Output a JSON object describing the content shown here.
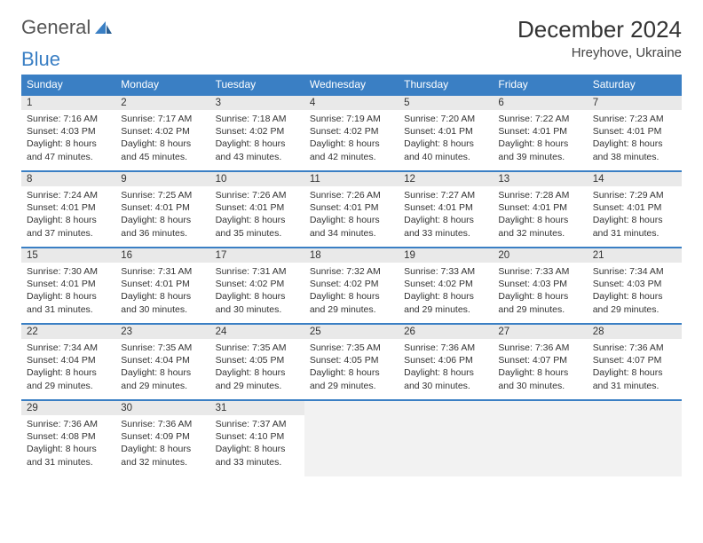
{
  "brand": {
    "part1": "General",
    "part2": "Blue"
  },
  "title": {
    "month": "December 2024",
    "location": "Hreyhove, Ukraine"
  },
  "dayNames": [
    "Sunday",
    "Monday",
    "Tuesday",
    "Wednesday",
    "Thursday",
    "Friday",
    "Saturday"
  ],
  "colors": {
    "header_bg": "#3a7fc4",
    "header_text": "#ffffff",
    "daynum_bg": "#e9e9e9",
    "border": "#3a7fc4",
    "empty_bg": "#f2f2f2"
  },
  "days": [
    {
      "n": "1",
      "sr": "7:16 AM",
      "ss": "4:03 PM",
      "dl": "8 hours and 47 minutes."
    },
    {
      "n": "2",
      "sr": "7:17 AM",
      "ss": "4:02 PM",
      "dl": "8 hours and 45 minutes."
    },
    {
      "n": "3",
      "sr": "7:18 AM",
      "ss": "4:02 PM",
      "dl": "8 hours and 43 minutes."
    },
    {
      "n": "4",
      "sr": "7:19 AM",
      "ss": "4:02 PM",
      "dl": "8 hours and 42 minutes."
    },
    {
      "n": "5",
      "sr": "7:20 AM",
      "ss": "4:01 PM",
      "dl": "8 hours and 40 minutes."
    },
    {
      "n": "6",
      "sr": "7:22 AM",
      "ss": "4:01 PM",
      "dl": "8 hours and 39 minutes."
    },
    {
      "n": "7",
      "sr": "7:23 AM",
      "ss": "4:01 PM",
      "dl": "8 hours and 38 minutes."
    },
    {
      "n": "8",
      "sr": "7:24 AM",
      "ss": "4:01 PM",
      "dl": "8 hours and 37 minutes."
    },
    {
      "n": "9",
      "sr": "7:25 AM",
      "ss": "4:01 PM",
      "dl": "8 hours and 36 minutes."
    },
    {
      "n": "10",
      "sr": "7:26 AM",
      "ss": "4:01 PM",
      "dl": "8 hours and 35 minutes."
    },
    {
      "n": "11",
      "sr": "7:26 AM",
      "ss": "4:01 PM",
      "dl": "8 hours and 34 minutes."
    },
    {
      "n": "12",
      "sr": "7:27 AM",
      "ss": "4:01 PM",
      "dl": "8 hours and 33 minutes."
    },
    {
      "n": "13",
      "sr": "7:28 AM",
      "ss": "4:01 PM",
      "dl": "8 hours and 32 minutes."
    },
    {
      "n": "14",
      "sr": "7:29 AM",
      "ss": "4:01 PM",
      "dl": "8 hours and 31 minutes."
    },
    {
      "n": "15",
      "sr": "7:30 AM",
      "ss": "4:01 PM",
      "dl": "8 hours and 31 minutes."
    },
    {
      "n": "16",
      "sr": "7:31 AM",
      "ss": "4:01 PM",
      "dl": "8 hours and 30 minutes."
    },
    {
      "n": "17",
      "sr": "7:31 AM",
      "ss": "4:02 PM",
      "dl": "8 hours and 30 minutes."
    },
    {
      "n": "18",
      "sr": "7:32 AM",
      "ss": "4:02 PM",
      "dl": "8 hours and 29 minutes."
    },
    {
      "n": "19",
      "sr": "7:33 AM",
      "ss": "4:02 PM",
      "dl": "8 hours and 29 minutes."
    },
    {
      "n": "20",
      "sr": "7:33 AM",
      "ss": "4:03 PM",
      "dl": "8 hours and 29 minutes."
    },
    {
      "n": "21",
      "sr": "7:34 AM",
      "ss": "4:03 PM",
      "dl": "8 hours and 29 minutes."
    },
    {
      "n": "22",
      "sr": "7:34 AM",
      "ss": "4:04 PM",
      "dl": "8 hours and 29 minutes."
    },
    {
      "n": "23",
      "sr": "7:35 AM",
      "ss": "4:04 PM",
      "dl": "8 hours and 29 minutes."
    },
    {
      "n": "24",
      "sr": "7:35 AM",
      "ss": "4:05 PM",
      "dl": "8 hours and 29 minutes."
    },
    {
      "n": "25",
      "sr": "7:35 AM",
      "ss": "4:05 PM",
      "dl": "8 hours and 29 minutes."
    },
    {
      "n": "26",
      "sr": "7:36 AM",
      "ss": "4:06 PM",
      "dl": "8 hours and 30 minutes."
    },
    {
      "n": "27",
      "sr": "7:36 AM",
      "ss": "4:07 PM",
      "dl": "8 hours and 30 minutes."
    },
    {
      "n": "28",
      "sr": "7:36 AM",
      "ss": "4:07 PM",
      "dl": "8 hours and 31 minutes."
    },
    {
      "n": "29",
      "sr": "7:36 AM",
      "ss": "4:08 PM",
      "dl": "8 hours and 31 minutes."
    },
    {
      "n": "30",
      "sr": "7:36 AM",
      "ss": "4:09 PM",
      "dl": "8 hours and 32 minutes."
    },
    {
      "n": "31",
      "sr": "7:37 AM",
      "ss": "4:10 PM",
      "dl": "8 hours and 33 minutes."
    }
  ],
  "labels": {
    "sunrise": "Sunrise: ",
    "sunset": "Sunset: ",
    "daylight": "Daylight: "
  }
}
